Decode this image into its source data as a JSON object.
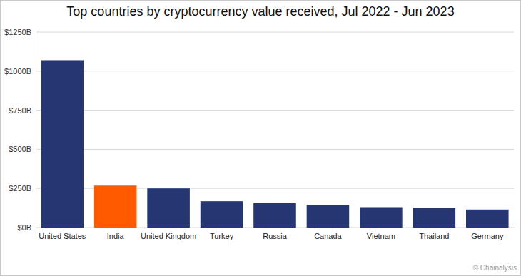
{
  "chart_data": {
    "type": "bar",
    "title": "Top countries by cryptocurrency value received, Jul 2022 - Jun 2023",
    "categories": [
      "United States",
      "India",
      "United Kingdom",
      "Turkey",
      "Russia",
      "Canada",
      "Vietnam",
      "Thailand",
      "Germany"
    ],
    "values": [
      1070,
      268,
      250,
      168,
      158,
      145,
      130,
      125,
      115
    ],
    "colors": [
      "#263672",
      "#ff5a00",
      "#263672",
      "#263672",
      "#263672",
      "#263672",
      "#263672",
      "#263672",
      "#263672"
    ],
    "ylim": [
      0,
      1250
    ],
    "yticks": [
      {
        "value": 0,
        "label": "$0B"
      },
      {
        "value": 250,
        "label": "$250B"
      },
      {
        "value": 500,
        "label": "$500B"
      },
      {
        "value": 750,
        "label": "$750B"
      },
      {
        "value": 1000,
        "label": "$1000B"
      },
      {
        "value": 1250,
        "label": "$1250B"
      }
    ],
    "grid": true,
    "annotations": [
      "© Chainalysis"
    ]
  }
}
